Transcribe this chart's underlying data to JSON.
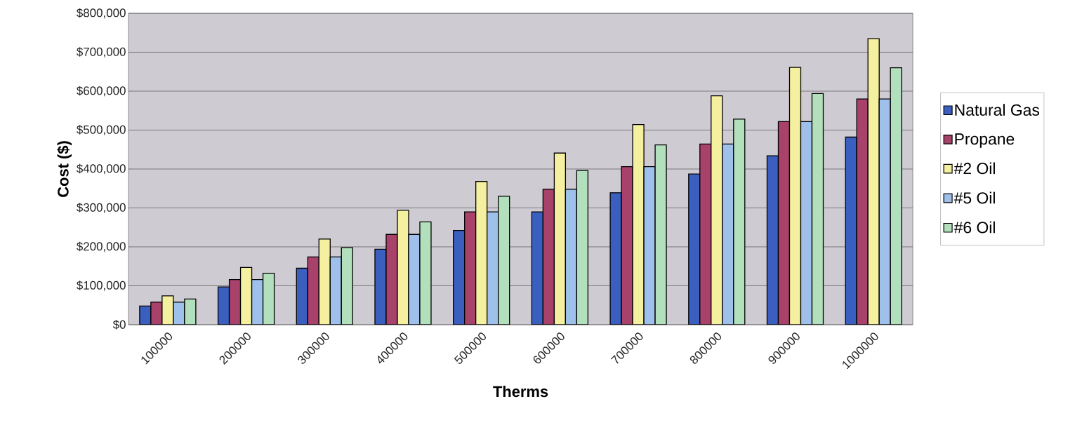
{
  "chart_data": {
    "type": "bar",
    "xlabel": "Therms",
    "ylabel": "Cost ($)",
    "categories": [
      "100000",
      "200000",
      "300000",
      "400000",
      "500000",
      "600000",
      "700000",
      "800000",
      "900000",
      "1000000"
    ],
    "series": [
      {
        "name": "Natural Gas",
        "color": "#3b5fbf",
        "values": [
          48000,
          97000,
          145000,
          194000,
          242000,
          290000,
          339000,
          387000,
          434000,
          482000
        ]
      },
      {
        "name": "Propane",
        "color": "#a8426a",
        "values": [
          58000,
          116000,
          174000,
          232000,
          290000,
          348000,
          406000,
          464000,
          522000,
          580000
        ]
      },
      {
        "name": "#2 Oil",
        "color": "#f5f0a0",
        "values": [
          74000,
          147000,
          220000,
          294000,
          368000,
          441000,
          514000,
          588000,
          661000,
          735000
        ]
      },
      {
        "name": "#5 Oil",
        "color": "#9ec0ea",
        "values": [
          58000,
          116000,
          174000,
          232000,
          290000,
          348000,
          406000,
          464000,
          522000,
          580000
        ]
      },
      {
        "name": "#6 Oil",
        "color": "#b2e0bd",
        "values": [
          66000,
          132000,
          198000,
          264000,
          330000,
          396000,
          462000,
          528000,
          594000,
          660000
        ]
      }
    ],
    "ylim": [
      0,
      800000
    ],
    "yticks": [
      {
        "value": 0,
        "label": "$0"
      },
      {
        "value": 100000,
        "label": "$100,000"
      },
      {
        "value": 200000,
        "label": "$200,000"
      },
      {
        "value": 300000,
        "label": "$300,000"
      },
      {
        "value": 400000,
        "label": "$400,000"
      },
      {
        "value": 500000,
        "label": "$500,000"
      },
      {
        "value": 600000,
        "label": "$600,000"
      },
      {
        "value": 700000,
        "label": "$700,000"
      },
      {
        "value": 800000,
        "label": "$800,000"
      }
    ],
    "grid": "y",
    "legend": "right"
  }
}
